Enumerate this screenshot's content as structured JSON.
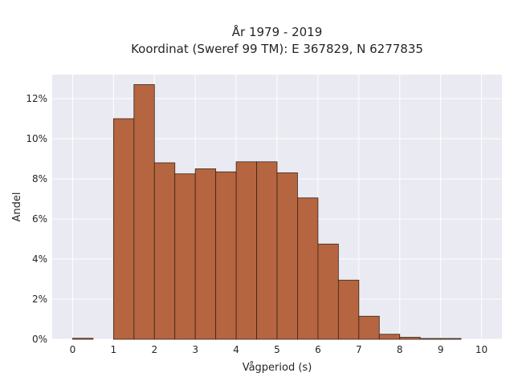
{
  "chart_data": {
    "type": "bar",
    "title_lines": [
      "År 1979 - 2019",
      "Koordinat (Sweref 99 TM): E 367829, N 6277835"
    ],
    "xlabel": "Vågperiod (s)",
    "ylabel": "Andel",
    "bin_width": 0.5,
    "bin_starts": [
      0,
      0.5,
      1,
      1.5,
      2,
      2.5,
      3,
      3.5,
      4,
      4.5,
      5,
      5.5,
      6,
      6.5,
      7,
      7.5,
      8,
      8.5,
      9,
      9.5
    ],
    "values": [
      0.05,
      0,
      11.0,
      12.7,
      8.8,
      8.25,
      8.5,
      8.35,
      8.85,
      8.85,
      8.3,
      7.05,
      4.75,
      2.95,
      1.15,
      0.25,
      0.1,
      0.04,
      0.04,
      0
    ],
    "xlim": [
      -0.5,
      10.5
    ],
    "ylim": [
      0,
      13.2
    ],
    "xticks": [
      0,
      1,
      2,
      3,
      4,
      5,
      6,
      7,
      8,
      9,
      10
    ],
    "xtick_labels": [
      "0",
      "1",
      "2",
      "3",
      "4",
      "5",
      "6",
      "7",
      "8",
      "9",
      "10"
    ],
    "yticks": [
      0,
      2,
      4,
      6,
      8,
      10,
      12
    ],
    "ytick_labels": [
      "0%",
      "2%",
      "4%",
      "6%",
      "8%",
      "10%",
      "12%"
    ],
    "grid": true,
    "bar_color": "#b5653f",
    "edge_color": "#3a2418",
    "plot_background": "#eaeaf2"
  }
}
